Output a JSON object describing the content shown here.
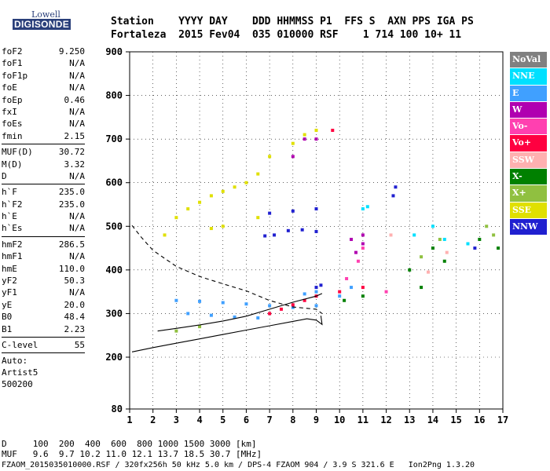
{
  "logo": {
    "line1": "Lowell",
    "line2": "DIGISONDE"
  },
  "header": {
    "labels": "Station    YYYY DAY    DDD HHMMSS P1  FFS S  AXN PPS IGA PS",
    "values": "Fortaleza  2015 Fev04  035 010000 RSF    1 714 100 10+ 11"
  },
  "params": {
    "g1": [
      {
        "k": "foF2",
        "v": "9.250"
      },
      {
        "k": "foF1",
        "v": "N/A"
      },
      {
        "k": "foF1p",
        "v": "N/A"
      },
      {
        "k": "foE",
        "v": "N/A"
      },
      {
        "k": "foEp",
        "v": "0.46"
      },
      {
        "k": "fxI",
        "v": "N/A"
      },
      {
        "k": "foEs",
        "v": "N/A"
      },
      {
        "k": "fmin",
        "v": "2.15"
      }
    ],
    "g2": [
      {
        "k": "MUF(D)",
        "v": "30.72"
      },
      {
        "k": "M(D)",
        "v": "3.32"
      },
      {
        "k": "D",
        "v": "N/A"
      }
    ],
    "g3": [
      {
        "k": "h`F",
        "v": "235.0"
      },
      {
        "k": "h`F2",
        "v": "235.0"
      },
      {
        "k": "h`E",
        "v": "N/A"
      },
      {
        "k": "h`Es",
        "v": "N/A"
      }
    ],
    "g4": [
      {
        "k": "hmF2",
        "v": "286.5"
      },
      {
        "k": "hmF1",
        "v": "N/A"
      },
      {
        "k": "hmE",
        "v": "110.0"
      },
      {
        "k": "yF2",
        "v": "50.3"
      },
      {
        "k": "yF1",
        "v": "N/A"
      },
      {
        "k": "yE",
        "v": "20.0"
      },
      {
        "k": "B0",
        "v": "48.4"
      },
      {
        "k": "B1",
        "v": "2.23"
      }
    ],
    "g5": [
      {
        "k": "C-level",
        "v": "55"
      }
    ],
    "auto": [
      "Auto:",
      "Artist5",
      "500200"
    ]
  },
  "legend": [
    {
      "label": "NoVal",
      "color": "#808080"
    },
    {
      "label": "NNE",
      "color": "#00e0ff"
    },
    {
      "label": "E",
      "color": "#40a0ff"
    },
    {
      "label": "W",
      "color": "#b000b0"
    },
    {
      "label": "Vo-",
      "color": "#ff40b0"
    },
    {
      "label": "Vo+",
      "color": "#ff0040"
    },
    {
      "label": "SSW",
      "color": "#ffb0b0"
    },
    {
      "label": "X-",
      "color": "#008000"
    },
    {
      "label": "X+",
      "color": "#90c040"
    },
    {
      "label": "SSE",
      "color": "#e0e000"
    },
    {
      "label": "NNW",
      "color": "#2020d0"
    }
  ],
  "footer": {
    "line1": "D     100  200  400  600  800 1000 1500 3000 [km]",
    "line2": "MUF   9.6  9.7 10.2 11.0 12.1 13.7 18.5 30.7 [MHz]",
    "line3": "FZAOM_2015035010000.RSF / 320fx256h 50 kHz 5.0 km / DPS-4 FZAOM 904 / 3.9 S 321.6 E   Ion2Png 1.3.20"
  },
  "chart_data": {
    "type": "scatter",
    "xlim": [
      1,
      17
    ],
    "ylim": [
      80,
      900
    ],
    "x_ticks": [
      1,
      2,
      3,
      4,
      5,
      6,
      7,
      8,
      9,
      10,
      11,
      12,
      13,
      14,
      15,
      16,
      17
    ],
    "y_ticks": [
      80,
      200,
      300,
      400,
      500,
      600,
      700,
      800,
      900
    ],
    "grid": true,
    "legend_position": "right",
    "lines": [
      {
        "style": "solid",
        "points": [
          [
            1.1,
            212
          ],
          [
            2,
            222
          ],
          [
            3,
            232
          ],
          [
            4,
            242
          ],
          [
            5,
            252
          ],
          [
            6,
            262
          ],
          [
            7,
            272
          ],
          [
            8,
            282
          ],
          [
            8.6,
            288
          ],
          [
            9,
            285
          ],
          [
            9.25,
            275
          ],
          [
            9.2,
            295
          ]
        ]
      },
      {
        "style": "dashed",
        "points": [
          [
            1.1,
            502
          ],
          [
            1.5,
            475
          ],
          [
            2,
            445
          ],
          [
            3,
            408
          ],
          [
            4,
            385
          ],
          [
            5,
            368
          ],
          [
            6,
            352
          ],
          [
            7,
            330
          ],
          [
            8,
            315
          ],
          [
            9,
            310
          ],
          [
            9.25,
            300
          ]
        ]
      },
      {
        "style": "solid",
        "points": [
          [
            2.2,
            260
          ],
          [
            3,
            266
          ],
          [
            4,
            274
          ],
          [
            5,
            283
          ],
          [
            6,
            294
          ],
          [
            7,
            310
          ],
          [
            8,
            326
          ],
          [
            9,
            340
          ],
          [
            9.25,
            346
          ]
        ]
      }
    ],
    "traces": [
      {
        "color": "#40a0ff",
        "points": [
          [
            3,
            330
          ],
          [
            4,
            328
          ],
          [
            5,
            325
          ],
          [
            6,
            322
          ],
          [
            7,
            318
          ],
          [
            8,
            314
          ],
          [
            9,
            318
          ],
          [
            3.5,
            300
          ],
          [
            4.5,
            296
          ],
          [
            5.5,
            292
          ],
          [
            6.5,
            290
          ],
          [
            8.5,
            345
          ],
          [
            9,
            350
          ],
          [
            10,
            340
          ],
          [
            10.5,
            360
          ]
        ]
      },
      {
        "color": "#2020d0",
        "points": [
          [
            6.8,
            478
          ],
          [
            7.2,
            480
          ],
          [
            7.8,
            490
          ],
          [
            8.4,
            492
          ],
          [
            9,
            488
          ],
          [
            7,
            530
          ],
          [
            8,
            535
          ],
          [
            9,
            540
          ],
          [
            9,
            360
          ],
          [
            9.2,
            365
          ],
          [
            12.4,
            590
          ],
          [
            12.3,
            570
          ],
          [
            15.8,
            450
          ]
        ]
      },
      {
        "color": "#e0e000",
        "points": [
          [
            3,
            520
          ],
          [
            3.5,
            540
          ],
          [
            4,
            555
          ],
          [
            4.5,
            570
          ],
          [
            5,
            580
          ],
          [
            5.5,
            590
          ],
          [
            6,
            600
          ],
          [
            6.5,
            620
          ],
          [
            7,
            660
          ],
          [
            8,
            690
          ],
          [
            8.5,
            710
          ],
          [
            9,
            720
          ],
          [
            4.5,
            495
          ],
          [
            5,
            500
          ],
          [
            6.5,
            520
          ],
          [
            2.5,
            480
          ]
        ]
      },
      {
        "color": "#b000b0",
        "points": [
          [
            8,
            660
          ],
          [
            8.5,
            700
          ],
          [
            9,
            700
          ],
          [
            10.5,
            470
          ],
          [
            11,
            480
          ],
          [
            11,
            460
          ],
          [
            10.7,
            440
          ]
        ]
      },
      {
        "color": "#ff0040",
        "points": [
          [
            7,
            300
          ],
          [
            7.5,
            310
          ],
          [
            8,
            320
          ],
          [
            8.5,
            330
          ],
          [
            9,
            340
          ],
          [
            10,
            350
          ],
          [
            11,
            360
          ],
          [
            9.7,
            720
          ]
        ]
      },
      {
        "color": "#ff40b0",
        "points": [
          [
            10.3,
            380
          ],
          [
            10.8,
            420
          ],
          [
            11,
            450
          ],
          [
            12,
            350
          ]
        ]
      },
      {
        "color": "#008000",
        "points": [
          [
            10.2,
            330
          ],
          [
            11,
            340
          ],
          [
            13,
            400
          ],
          [
            14,
            450
          ],
          [
            14.5,
            420
          ],
          [
            16,
            470
          ],
          [
            16.8,
            450
          ],
          [
            13.5,
            360
          ]
        ]
      },
      {
        "color": "#00e0ff",
        "points": [
          [
            13.2,
            480
          ],
          [
            14,
            500
          ],
          [
            14.5,
            470
          ],
          [
            11,
            540
          ],
          [
            11.2,
            545
          ],
          [
            15.5,
            460
          ]
        ]
      },
      {
        "color": "#90c040",
        "points": [
          [
            13.5,
            430
          ],
          [
            14.3,
            470
          ],
          [
            16.3,
            500
          ],
          [
            16.6,
            480
          ],
          [
            3,
            260
          ],
          [
            4,
            270
          ]
        ]
      },
      {
        "color": "#ffb0b0",
        "points": [
          [
            12.2,
            480
          ],
          [
            14.6,
            440
          ],
          [
            13.8,
            395
          ]
        ]
      }
    ]
  }
}
